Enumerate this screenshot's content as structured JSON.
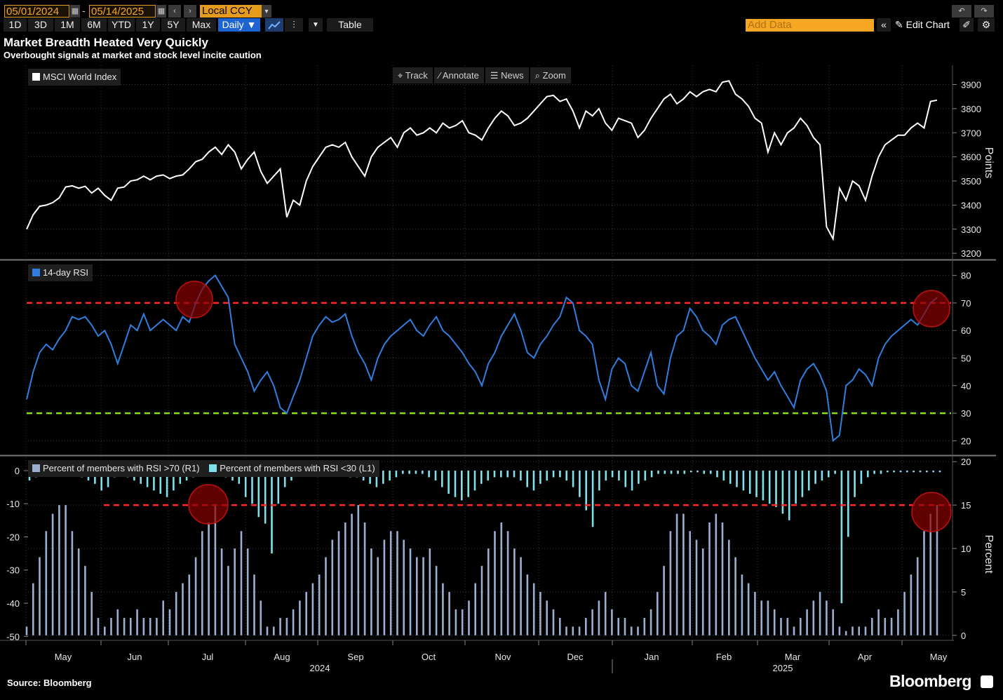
{
  "toolbar": {
    "start_date": "05/01/2024",
    "end_date": "05/14/2025",
    "currency": "Local CCY",
    "ranges": [
      "1D",
      "3D",
      "1M",
      "6M",
      "YTD",
      "1Y",
      "5Y",
      "Max"
    ],
    "frequency": "Daily ▼",
    "table_label": "Table",
    "add_data_placeholder": "Add Data",
    "edit_chart_label": "Edit Chart",
    "tools": [
      "Track",
      "Annotate",
      "News",
      "Zoom"
    ]
  },
  "title": "Market Breadth Heated Very Quickly",
  "subtitle": "Overbought signals at market and stock level incite caution",
  "source": "Source: Bloomberg",
  "brand": "Bloomberg",
  "colors": {
    "index_line": "#ffffff",
    "rsi_line": "#2f7fe0",
    "overbought": "#ff2a2a",
    "oversold": "#8bdc1e",
    "gt70_bars": "#9aaed0",
    "lt30_bars": "#7fe0ec",
    "highlight": "#8a0000"
  },
  "chart_data": [
    {
      "type": "line",
      "series": [
        {
          "name": "MSCI World Index",
          "values": [
            3300,
            3360,
            3395,
            3400,
            3410,
            3430,
            3475,
            3480,
            3470,
            3478,
            3450,
            3470,
            3440,
            3420,
            3470,
            3475,
            3500,
            3505,
            3520,
            3505,
            3520,
            3525,
            3510,
            3520,
            3525,
            3550,
            3580,
            3590,
            3620,
            3640,
            3610,
            3650,
            3620,
            3550,
            3590,
            3620,
            3540,
            3490,
            3520,
            3550,
            3350,
            3420,
            3400,
            3500,
            3560,
            3600,
            3640,
            3650,
            3640,
            3660,
            3600,
            3560,
            3520,
            3600,
            3640,
            3660,
            3680,
            3640,
            3700,
            3720,
            3690,
            3700,
            3720,
            3700,
            3740,
            3720,
            3730,
            3750,
            3700,
            3690,
            3670,
            3720,
            3760,
            3790,
            3770,
            3730,
            3740,
            3760,
            3790,
            3820,
            3850,
            3855,
            3830,
            3840,
            3790,
            3720,
            3790,
            3770,
            3800,
            3740,
            3710,
            3760,
            3750,
            3740,
            3680,
            3710,
            3760,
            3800,
            3840,
            3860,
            3820,
            3840,
            3870,
            3850,
            3870,
            3880,
            3870,
            3910,
            3915,
            3860,
            3840,
            3810,
            3760,
            3740,
            3620,
            3700,
            3650,
            3700,
            3720,
            3760,
            3730,
            3680,
            3650,
            3310,
            3260,
            3470,
            3420,
            3500,
            3480,
            3420,
            3520,
            3600,
            3650,
            3670,
            3690,
            3690,
            3720,
            3740,
            3720,
            3830,
            3835
          ]
        }
      ],
      "y_axis": {
        "label": "Points",
        "ticks": [
          3200,
          3300,
          3400,
          3500,
          3600,
          3700,
          3800,
          3900
        ],
        "range": [
          3180,
          3980
        ],
        "side": "right"
      }
    },
    {
      "type": "line",
      "series": [
        {
          "name": "14-day RSI",
          "values": [
            35,
            45,
            52,
            55,
            53,
            57,
            60,
            65,
            64,
            65,
            62,
            58,
            60,
            55,
            48,
            55,
            62,
            60,
            66,
            60,
            62,
            64,
            62,
            60,
            65,
            63,
            70,
            75,
            78,
            80,
            76,
            72,
            55,
            50,
            45,
            38,
            42,
            45,
            40,
            32,
            30,
            36,
            42,
            50,
            58,
            62,
            65,
            63,
            64,
            66,
            58,
            52,
            48,
            42,
            50,
            55,
            58,
            60,
            62,
            64,
            60,
            58,
            62,
            65,
            60,
            58,
            55,
            52,
            48,
            45,
            40,
            48,
            52,
            58,
            62,
            66,
            60,
            52,
            50,
            55,
            58,
            62,
            65,
            72,
            70,
            60,
            58,
            55,
            42,
            35,
            46,
            50,
            48,
            40,
            38,
            45,
            52,
            40,
            37,
            50,
            58,
            60,
            68,
            65,
            60,
            58,
            55,
            62,
            64,
            65,
            60,
            55,
            50,
            46,
            42,
            45,
            40,
            36,
            32,
            42,
            46,
            48,
            44,
            38,
            20,
            22,
            40,
            42,
            46,
            44,
            40,
            50,
            55,
            58,
            60,
            62,
            64,
            62,
            66,
            70,
            72
          ]
        }
      ],
      "reference_lines": [
        {
          "value": 70,
          "color": "#ff2a2a"
        },
        {
          "value": 30,
          "color": "#8bdc1e"
        }
      ],
      "y_axis": {
        "ticks": [
          20,
          30,
          40,
          50,
          60,
          70,
          80
        ],
        "range": [
          15,
          85
        ],
        "side": "right"
      }
    },
    {
      "type": "bar",
      "series": [
        {
          "name": "Percent of members with RSI >70 (R1)",
          "axis": "right",
          "values": [
            1,
            6,
            9,
            12,
            14,
            15,
            15,
            12,
            10,
            8,
            5,
            2,
            1,
            2,
            3,
            2,
            2,
            3,
            2,
            2,
            2,
            4,
            3,
            5,
            6,
            7,
            9,
            12,
            13,
            15,
            10,
            8,
            10,
            12,
            10,
            7,
            4,
            1,
            1,
            2,
            2,
            3,
            4,
            5,
            6,
            7,
            9,
            11,
            12,
            13,
            14,
            15,
            13,
            10,
            9,
            11,
            12,
            12,
            11,
            10,
            9,
            9,
            10,
            8,
            6,
            5,
            3,
            3,
            4,
            6,
            8,
            10,
            12,
            13,
            12,
            10,
            9,
            7,
            6,
            5,
            4,
            3,
            2,
            1,
            1,
            1,
            2,
            3,
            4,
            5,
            3,
            2,
            2,
            1,
            1,
            2,
            3,
            5,
            8,
            12,
            14,
            14,
            12,
            11,
            10,
            13,
            14,
            13,
            11,
            9,
            7,
            6,
            5,
            4,
            4,
            3,
            2,
            2,
            1,
            2,
            3,
            4,
            5,
            4,
            3,
            1,
            0.5,
            1,
            1,
            1,
            2,
            3,
            2,
            2,
            3,
            5,
            7,
            9,
            12,
            14,
            15
          ]
        },
        {
          "name": "Percent of members with RSI <30 (L1)",
          "axis": "left",
          "values": [
            -3,
            -2,
            -1,
            -1,
            -1,
            -0.5,
            -0.5,
            -1,
            -2,
            -3,
            -4,
            -6,
            -5,
            -2,
            -1,
            -2,
            -3,
            -4,
            -5,
            -6,
            -7,
            -8,
            -6,
            -4,
            -3,
            -2,
            -1,
            -1,
            -0.5,
            -1,
            -2,
            -3,
            -4,
            -8,
            -10,
            -14,
            -16,
            -25,
            -10,
            -5,
            -3,
            -1,
            -0.5,
            -0.5,
            -0.5,
            -0.5,
            -1,
            -1,
            -1,
            -2,
            -2,
            -3,
            -4,
            -5,
            -4,
            -3,
            -2,
            -1,
            -1,
            -1,
            -1,
            -2,
            -3,
            -5,
            -7,
            -8,
            -9,
            -8,
            -6,
            -4,
            -3,
            -2,
            -2,
            -2,
            -2,
            -3,
            -5,
            -6,
            -4,
            -3,
            -2,
            -2,
            -3,
            -5,
            -8,
            -12,
            -17,
            -6,
            -3,
            -2,
            -3,
            -5,
            -6,
            -4,
            -3,
            -2,
            -1,
            -1,
            -1,
            -1,
            -1,
            -0.5,
            -0.5,
            -1,
            -1,
            -2,
            -3,
            -4,
            -5,
            -6,
            -7,
            -8,
            -9,
            -10,
            -11,
            -13,
            -15,
            -10,
            -8,
            -6,
            -4,
            -3,
            -2,
            -1,
            -40,
            -20,
            -8,
            -4,
            -2,
            -1,
            -1,
            -0.5,
            -0.5,
            -0.5,
            -0.5,
            -0.5,
            -0.5,
            -0.5,
            -0.5,
            -0.5
          ]
        }
      ],
      "reference_lines": [
        {
          "value": 15,
          "axis": "right",
          "color": "#ff2a2a"
        }
      ],
      "y_axis_left": {
        "ticks": [
          0,
          -10,
          -20,
          -30,
          -40,
          -50
        ],
        "range": [
          -51,
          4
        ]
      },
      "y_axis_right": {
        "label": "Percent",
        "ticks": [
          0,
          5,
          10,
          15,
          20
        ],
        "range": [
          -0.5,
          20.5
        ]
      }
    }
  ],
  "x_axis": {
    "months": [
      "May",
      "Jun",
      "Jul",
      "Aug",
      "Sep",
      "Oct",
      "Nov",
      "Dec",
      "Jan",
      "Feb",
      "Mar",
      "Apr",
      "May"
    ],
    "years": [
      "2024",
      "2025"
    ]
  }
}
